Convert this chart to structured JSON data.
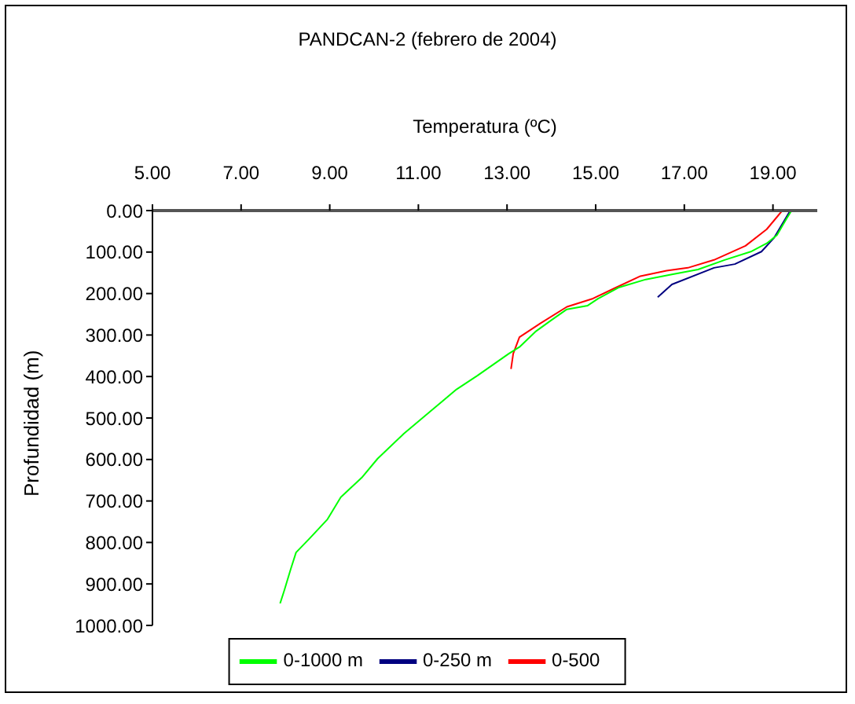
{
  "chart_data": {
    "type": "line",
    "title": "PANDCAN-2 (febrero de 2004)",
    "xlabel": "Temperatura (ºC)",
    "ylabel": "Profundidad (m)",
    "xlim": [
      5,
      20
    ],
    "xticks": [
      {
        "value": 5,
        "label": "5.00"
      },
      {
        "value": 7,
        "label": "7.00"
      },
      {
        "value": 9,
        "label": "9.00"
      },
      {
        "value": 11,
        "label": "11.00"
      },
      {
        "value": 13,
        "label": "13.00"
      },
      {
        "value": 15,
        "label": "15.00"
      },
      {
        "value": 17,
        "label": "17.00"
      },
      {
        "value": 19,
        "label": "19.00"
      }
    ],
    "ylim": [
      1000,
      0
    ],
    "yticks": [
      {
        "value": 0,
        "label": "0.00"
      },
      {
        "value": 100,
        "label": "100.00"
      },
      {
        "value": 200,
        "label": "200.00"
      },
      {
        "value": 300,
        "label": "300.00"
      },
      {
        "value": 400,
        "label": "400.00"
      },
      {
        "value": 500,
        "label": "500.00"
      },
      {
        "value": 600,
        "label": "600.00"
      },
      {
        "value": 700,
        "label": "700.00"
      },
      {
        "value": 800,
        "label": "800.00"
      },
      {
        "value": 900,
        "label": "900.00"
      },
      {
        "value": 1000,
        "label": "1000.00"
      }
    ],
    "legend": "bottom",
    "series": [
      {
        "name": "0-250 m",
        "color": "#000080",
        "x": [
          19.39,
          19.03,
          18.74,
          18.14,
          17.67,
          16.72,
          16.4
        ],
        "values": [
          0,
          65,
          99,
          129,
          138,
          178,
          209
        ]
      },
      {
        "name": "0-500",
        "color": "#ff0000",
        "x": [
          19.21,
          18.86,
          18.38,
          17.67,
          17.08,
          16.6,
          16.01,
          15.41,
          14.94,
          14.35,
          13.75,
          13.28,
          13.14,
          13.09
        ],
        "values": [
          0,
          45,
          85,
          119,
          138,
          145,
          158,
          188,
          212,
          232,
          272,
          305,
          345,
          382
        ]
      },
      {
        "name": "0-1000 m",
        "color": "#00ff00",
        "x": [
          19.42,
          19.31,
          19.09,
          18.86,
          18.5,
          17.91,
          17.31,
          16.72,
          16.13,
          15.53,
          15.06,
          14.82,
          14.35,
          13.99,
          13.64,
          13.28,
          13.04,
          12.33,
          11.86,
          11.26,
          10.67,
          10.08,
          9.72,
          9.25,
          8.95,
          8.54,
          8.24,
          8.12,
          7.97,
          7.88
        ],
        "values": [
          0,
          19,
          59,
          79,
          99,
          119,
          142,
          154,
          166,
          185,
          212,
          229,
          238,
          265,
          292,
          329,
          345,
          398,
          431,
          485,
          538,
          598,
          644,
          691,
          744,
          791,
          824,
          864,
          917,
          947
        ]
      }
    ]
  }
}
